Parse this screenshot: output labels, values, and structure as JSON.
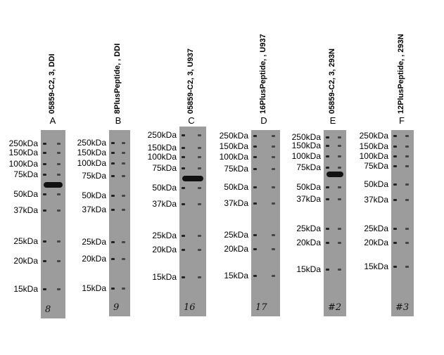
{
  "panels": [
    {
      "title": "05859-C2, 3, DDI",
      "letter": "A",
      "markers": [
        "250kDa",
        "150kDa",
        "100kDa",
        "75kDa",
        "50kDa",
        "37kDa",
        "25kDa",
        "20kDa",
        "15kDa"
      ],
      "lane_note": "8"
    },
    {
      "title": "8PlusPeptide, , DDI",
      "letter": "B",
      "markers": [
        "250kDa",
        "150kDa",
        "100kDa",
        "75kDa",
        "50kDa",
        "37kDa",
        "25kDa",
        "20kDa",
        "15kDa"
      ],
      "lane_note": "9"
    },
    {
      "title": "05859-C2, 3, U937",
      "letter": "C",
      "markers": [
        "250kDa",
        "150kDa",
        "100kDa",
        "75kDa",
        "50kDa",
        "37kDa",
        "25kDa",
        "20kDa",
        "15kDa"
      ],
      "lane_note": "16"
    },
    {
      "title": "16PlusPeptide, , U937",
      "letter": "D",
      "markers": [
        "250kDa",
        "150kDa",
        "100kDa",
        "75kDa",
        "50kDa",
        "37kDa",
        "25kDa",
        "20kDa",
        "15kDa"
      ],
      "lane_note": "17"
    },
    {
      "title": "05859-C2, 3, 293N",
      "letter": "E",
      "markers": [
        "250kDa",
        "150kDa",
        "100kDa",
        "75kDa",
        "50kDa",
        "37kDa",
        "25kDa",
        "20kDa",
        "15kDa"
      ],
      "lane_note": "#2"
    },
    {
      "title": "12PlusPeptide, , 293N",
      "letter": "F",
      "markers": [
        "250kDa",
        "150kDa",
        "100kDa",
        "75kDa",
        "50kDa",
        "37kDa",
        "25kDa",
        "20kDa",
        "15kDa"
      ],
      "lane_note": "#3"
    }
  ]
}
